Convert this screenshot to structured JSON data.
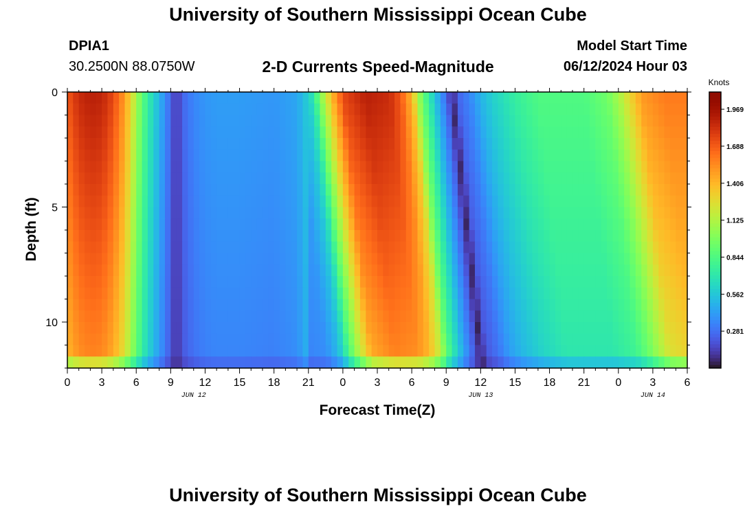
{
  "header": {
    "title": "University of Southern Mississippi Ocean Cube",
    "station_id": "DPIA1",
    "station_coords": "30.2500N  88.0750W",
    "subtitle": "2-D Currents Speed-Magnitude",
    "model_start_label": "Model Start Time",
    "model_start_value": "06/12/2024 Hour 03"
  },
  "footer": {
    "title": "University of Southern Mississippi Ocean Cube"
  },
  "chart_data": {
    "type": "heatmap",
    "title": "2-D Currents Speed-Magnitude",
    "xlabel": "Forecast Time(Z)",
    "ylabel": "Depth (ft)",
    "x_range_hours": [
      0,
      54
    ],
    "y_range_ft": [
      0,
      12
    ],
    "y_inverted": true,
    "x_tick_labels": [
      "0",
      "3",
      "6",
      "9",
      "12",
      "15",
      "18",
      "21",
      "0",
      "3",
      "6",
      "9",
      "12",
      "15",
      "18",
      "21",
      "0",
      "3",
      "6"
    ],
    "date_labels": [
      {
        "label": "JUN 12",
        "hour": 11
      },
      {
        "label": "JUN 13",
        "hour": 36
      },
      {
        "label": "JUN 14",
        "hour": 51
      }
    ],
    "y_tick_labels": [
      "0",
      "5",
      "10"
    ],
    "colorbar": {
      "title": "Knots",
      "min": 0.0,
      "max": 2.1,
      "tick_labels": [
        "0.281",
        "0.562",
        "0.844",
        "1.125",
        "1.406",
        "1.688",
        "1.969"
      ],
      "tick_values": [
        0.281,
        0.562,
        0.844,
        1.125,
        1.406,
        1.688,
        1.969
      ],
      "colormap": "turbo"
    },
    "surface_speed_profile": {
      "hours": [
        0,
        1,
        2,
        3,
        4,
        5,
        6,
        6.5,
        7,
        8,
        9,
        9.5,
        10,
        11,
        12,
        13,
        15,
        18,
        20,
        21,
        21.5,
        22,
        23,
        24,
        26,
        28,
        29,
        30,
        30.5,
        31,
        32,
        33,
        33.5,
        34,
        35,
        36,
        37,
        39,
        41,
        43,
        45,
        47,
        48,
        49,
        50,
        52,
        54
      ],
      "speed_knots": [
        1.7,
        1.85,
        1.9,
        1.88,
        1.75,
        1.5,
        1.1,
        0.9,
        0.75,
        0.5,
        0.25,
        0.1,
        0.25,
        0.35,
        0.4,
        0.42,
        0.42,
        0.4,
        0.45,
        0.6,
        0.75,
        1.0,
        1.4,
        1.75,
        1.9,
        1.85,
        1.7,
        1.4,
        1.1,
        0.9,
        0.55,
        0.25,
        0.05,
        0.25,
        0.35,
        0.5,
        0.6,
        0.75,
        0.85,
        0.85,
        0.85,
        0.95,
        1.1,
        1.3,
        1.5,
        1.6,
        1.6
      ]
    },
    "depth_shift_hours_per_ft": 0.22,
    "depth_shift_after_hour": 21,
    "depth_attenuation_per_ft": 0.015
  }
}
